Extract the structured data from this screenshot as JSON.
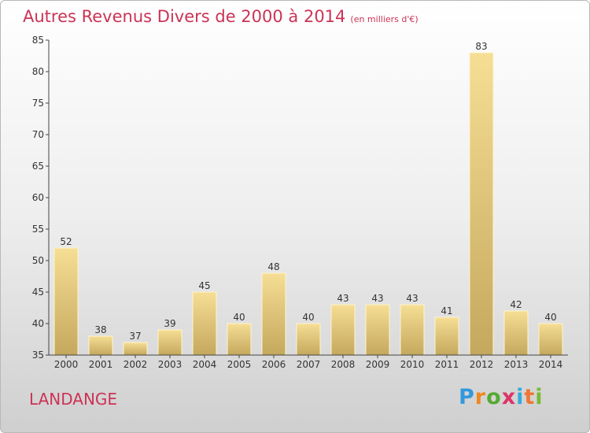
{
  "title": "Autres Revenus Divers de 2000 à 2014",
  "subtitle": "(en milliers d'€)",
  "commune": "LANDANGE",
  "logo": {
    "letters": [
      "P",
      "r",
      "o",
      "x",
      "i",
      "t",
      "i"
    ],
    "colors": [
      "#3399dd",
      "#ee8822",
      "#55aa33",
      "#dd3366",
      "#33aadd",
      "#ee7733",
      "#77bb33"
    ]
  },
  "colors": {
    "title": "#cc3355",
    "bar_top": "#f6de95",
    "bar_bottom": "#c4a85d",
    "axis": "#444444"
  },
  "chart_data": {
    "type": "bar",
    "categories": [
      "2000",
      "2001",
      "2002",
      "2003",
      "2004",
      "2005",
      "2006",
      "2007",
      "2008",
      "2009",
      "2010",
      "2011",
      "2012",
      "2013",
      "2014"
    ],
    "values": [
      52,
      38,
      37,
      39,
      45,
      40,
      48,
      40,
      43,
      43,
      43,
      41,
      83,
      42,
      40
    ],
    "ylim": [
      35,
      85
    ],
    "yticks": [
      35,
      40,
      45,
      50,
      55,
      60,
      65,
      70,
      75,
      80,
      85
    ],
    "grid": false,
    "data_labels": true
  }
}
